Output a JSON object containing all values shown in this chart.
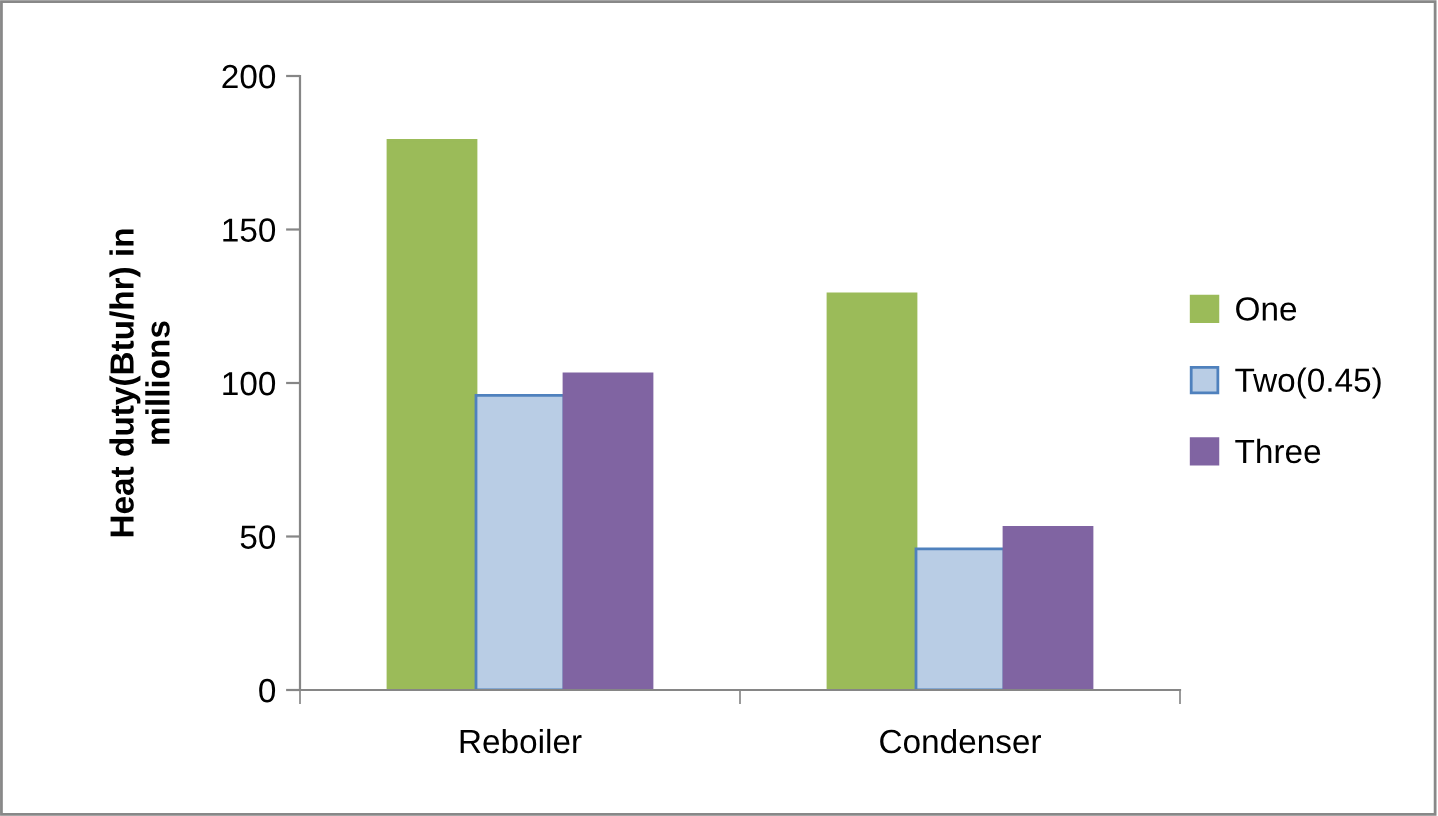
{
  "chart_data": {
    "type": "bar",
    "ylabel": "Heat duty(Btu/hr) in millions",
    "categories": [
      "Reboiler",
      "Condenser"
    ],
    "series": [
      {
        "name": "One",
        "color": "#9bbb59",
        "values": [
          179,
          129
        ]
      },
      {
        "name": "Two(0.45)",
        "color": "#b9cde5",
        "values": [
          96,
          46
        ]
      },
      {
        "name": "Three",
        "color": "#8064a2",
        "values": [
          103,
          53
        ]
      }
    ],
    "ylim": [
      0,
      200
    ],
    "yticks": [
      0,
      50,
      100,
      150,
      200
    ],
    "grid": false,
    "legend": "right"
  }
}
